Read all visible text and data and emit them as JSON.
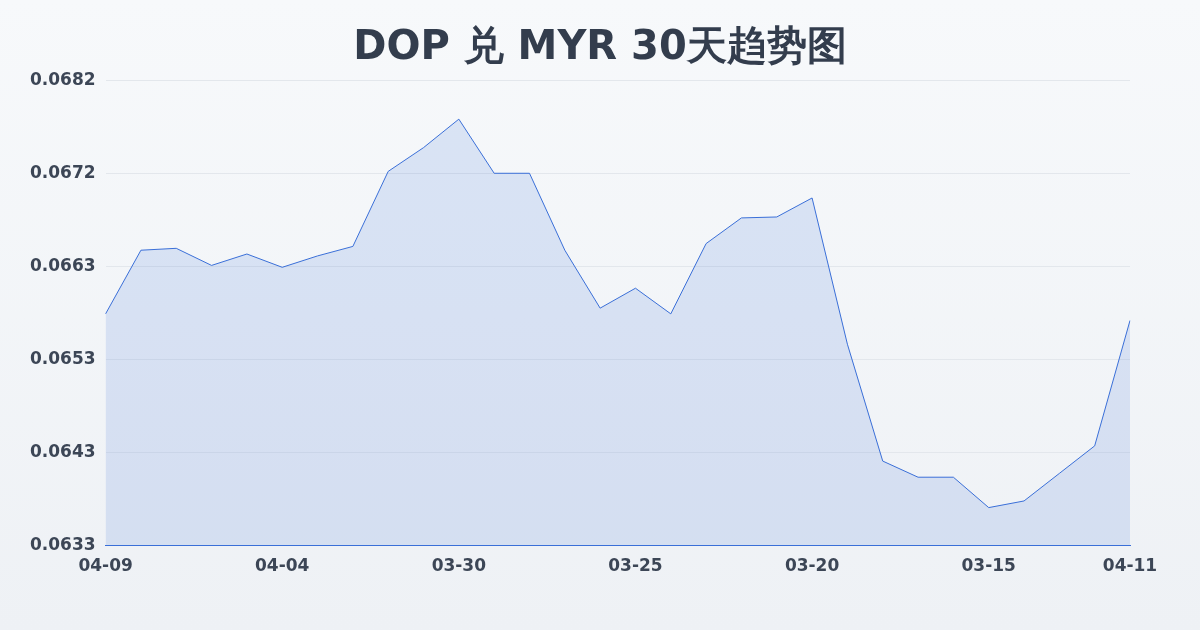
{
  "chart_data": {
    "type": "area",
    "title": "DOP 兑 MYR 30天趋势图",
    "categories": [
      "04-09",
      null,
      null,
      null,
      null,
      "04-04",
      null,
      null,
      null,
      null,
      "03-30",
      null,
      null,
      null,
      null,
      "03-25",
      null,
      null,
      null,
      null,
      "03-20",
      null,
      null,
      null,
      null,
      "03-15",
      null,
      null,
      null,
      "04-11"
    ],
    "series": [
      {
        "color": "#3a6fd8",
        "values": [
          0.06576,
          0.06643,
          0.06645,
          0.06627,
          0.06639,
          0.06625,
          0.06637,
          0.06647,
          0.06726,
          0.06751,
          0.06781,
          0.06724,
          0.06724,
          0.06643,
          0.06582,
          0.06603,
          0.06576,
          0.0665,
          0.06677,
          0.06678,
          0.06698,
          0.06544,
          0.06421,
          0.06404,
          0.06404,
          0.06372,
          0.06379,
          0.06408,
          0.06437,
          0.06569
        ]
      }
    ],
    "ylim": [
      0.06332,
      0.06822
    ],
    "yticks": [
      {
        "value": 0.06332,
        "label": "0.0633"
      },
      {
        "value": 0.0643,
        "label": "0.0643"
      },
      {
        "value": 0.06528,
        "label": "0.0653"
      },
      {
        "value": 0.06626,
        "label": "0.0663"
      },
      {
        "value": 0.06724,
        "label": "0.0672"
      },
      {
        "value": 0.06822,
        "label": "0.0682"
      }
    ],
    "grid": "y",
    "marker": "none",
    "legend": false
  }
}
